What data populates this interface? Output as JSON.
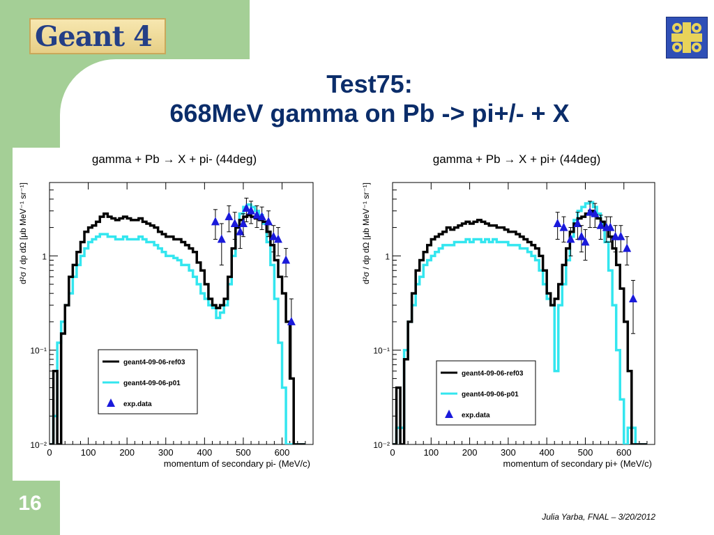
{
  "header": {
    "logo_text": "Geant 4"
  },
  "title": {
    "line1": "Test75:",
    "line2": "668MeV gamma on Pb -> pi+/- + X"
  },
  "footer": {
    "slide_number": "16",
    "credit": "Julia Yarba, FNAL – 3/20/2012"
  },
  "colors": {
    "ref03": "#000000",
    "p01": "#33e6ef",
    "exp": "#1a1adb",
    "bg_green": "#a4cf96",
    "title": "#0b2d6a"
  },
  "chart_data": [
    {
      "type": "line",
      "title": "gamma + Pb → X + pi- (44deg)",
      "xlabel": "momentum of secondary pi- (MeV/c)",
      "ylabel": "d²σ / dp dΩ [μb MeV⁻¹ sr⁻¹]",
      "xlim": [
        0,
        680
      ],
      "ylim": [
        0.01,
        6
      ],
      "yscale": "log",
      "x_ticks": [
        "0",
        "100",
        "200",
        "300",
        "400",
        "500",
        "600"
      ],
      "y_ticks": [
        "10⁻²",
        "10⁻¹",
        "1"
      ],
      "legend": [
        "geant4-09-06-ref03",
        "geant4-09-06-p01",
        "exp.data"
      ],
      "legend_position": "lower-left",
      "series": [
        {
          "name": "geant4-09-06-ref03",
          "x": [
            10,
            20,
            30,
            40,
            50,
            60,
            70,
            80,
            90,
            100,
            110,
            120,
            130,
            140,
            150,
            160,
            170,
            180,
            190,
            200,
            210,
            220,
            230,
            240,
            250,
            260,
            270,
            280,
            290,
            300,
            310,
            320,
            330,
            340,
            350,
            360,
            370,
            380,
            390,
            400,
            410,
            420,
            430,
            440,
            450,
            460,
            470,
            480,
            490,
            500,
            510,
            520,
            530,
            540,
            550,
            560,
            570,
            580,
            590,
            600,
            610,
            620,
            630,
            640,
            650,
            660
          ],
          "y": [
            0.01,
            0.06,
            0.01,
            0.15,
            0.3,
            0.6,
            0.8,
            1.1,
            1.4,
            1.8,
            2.0,
            2.1,
            2.3,
            2.6,
            2.8,
            2.6,
            2.5,
            2.4,
            2.5,
            2.6,
            2.5,
            2.4,
            2.4,
            2.5,
            2.3,
            2.2,
            2.1,
            2.0,
            1.8,
            1.7,
            1.6,
            1.6,
            1.5,
            1.5,
            1.4,
            1.3,
            1.2,
            1.1,
            0.85,
            0.7,
            0.5,
            0.35,
            0.3,
            0.28,
            0.3,
            0.35,
            0.6,
            1.2,
            2.0,
            2.4,
            2.6,
            2.7,
            2.6,
            2.5,
            2.4,
            2.3,
            1.8,
            1.3,
            0.9,
            0.6,
            0.4,
            0.2,
            0.05,
            0.01,
            0.01,
            0.01
          ]
        },
        {
          "name": "geant4-09-06-p01",
          "x": [
            10,
            20,
            30,
            40,
            50,
            60,
            70,
            80,
            90,
            100,
            110,
            120,
            130,
            140,
            150,
            160,
            170,
            180,
            190,
            200,
            210,
            220,
            230,
            240,
            250,
            260,
            270,
            280,
            290,
            300,
            310,
            320,
            330,
            340,
            350,
            360,
            370,
            380,
            390,
            400,
            410,
            420,
            430,
            440,
            450,
            460,
            470,
            480,
            490,
            500,
            510,
            520,
            530,
            540,
            550,
            560,
            570,
            580,
            590,
            600,
            610,
            620,
            630,
            640,
            650,
            660
          ],
          "y": [
            0.01,
            0.02,
            0.12,
            0.2,
            0.3,
            0.4,
            0.6,
            0.8,
            1.0,
            1.2,
            1.4,
            1.5,
            1.6,
            1.7,
            1.7,
            1.6,
            1.6,
            1.5,
            1.5,
            1.6,
            1.5,
            1.5,
            1.5,
            1.6,
            1.5,
            1.4,
            1.4,
            1.3,
            1.2,
            1.1,
            1.0,
            1.0,
            0.95,
            0.9,
            0.8,
            0.8,
            0.7,
            0.6,
            0.5,
            0.4,
            0.35,
            0.3,
            0.28,
            0.22,
            0.25,
            0.3,
            0.5,
            1.0,
            2.0,
            2.8,
            3.3,
            3.5,
            3.3,
            3.0,
            2.7,
            2.2,
            1.4,
            0.8,
            0.35,
            0.12,
            0.04,
            0.01,
            0.01,
            0.01,
            0.01,
            0.01
          ]
        },
        {
          "name": "exp.data",
          "x": [
            428,
            444,
            463,
            478,
            492,
            500,
            508,
            520,
            535,
            548,
            565,
            578,
            590,
            610,
            624
          ],
          "y": [
            2.3,
            1.5,
            2.6,
            2.2,
            1.8,
            2.2,
            3.2,
            3.0,
            2.7,
            2.6,
            2.3,
            1.6,
            1.5,
            0.9,
            0.2
          ],
          "yerr": [
            0.8,
            0.7,
            0.8,
            0.7,
            0.6,
            0.6,
            0.9,
            0.8,
            0.7,
            0.7,
            0.7,
            0.5,
            0.5,
            0.3,
            0.15
          ]
        }
      ]
    },
    {
      "type": "line",
      "title": "gamma + Pb → X + pi+ (44deg)",
      "xlabel": "momentum of secondary pi+ (MeV/c)",
      "ylabel": "d²σ / dp dΩ [μb MeV⁻¹ sr⁻¹]",
      "xlim": [
        0,
        680
      ],
      "ylim": [
        0.01,
        6
      ],
      "yscale": "log",
      "x_ticks": [
        "0",
        "100",
        "200",
        "300",
        "400",
        "500",
        "600"
      ],
      "y_ticks": [
        "10⁻²",
        "10⁻¹",
        "1"
      ],
      "legend": [
        "geant4-09-06-ref03",
        "geant4-09-06-p01",
        "exp.data"
      ],
      "legend_position": "lower-center",
      "series": [
        {
          "name": "geant4-09-06-ref03",
          "x": [
            10,
            20,
            30,
            40,
            50,
            60,
            70,
            80,
            90,
            100,
            110,
            120,
            130,
            140,
            150,
            160,
            170,
            180,
            190,
            200,
            210,
            220,
            230,
            240,
            250,
            260,
            270,
            280,
            290,
            300,
            310,
            320,
            330,
            340,
            350,
            360,
            370,
            380,
            390,
            400,
            410,
            420,
            430,
            440,
            450,
            460,
            470,
            480,
            490,
            500,
            510,
            520,
            530,
            540,
            550,
            560,
            570,
            580,
            590,
            600,
            610,
            620,
            630,
            640,
            650,
            660
          ],
          "y": [
            0.01,
            0.04,
            0.01,
            0.08,
            0.2,
            0.4,
            0.7,
            0.9,
            1.1,
            1.3,
            1.5,
            1.6,
            1.7,
            1.8,
            2.0,
            1.9,
            2.0,
            2.1,
            2.2,
            2.3,
            2.2,
            2.3,
            2.4,
            2.3,
            2.2,
            2.1,
            2.1,
            2.0,
            2.0,
            1.9,
            1.8,
            1.8,
            1.7,
            1.6,
            1.5,
            1.4,
            1.3,
            1.2,
            1.0,
            0.7,
            0.4,
            0.3,
            0.35,
            0.5,
            0.8,
            1.2,
            1.8,
            2.2,
            2.5,
            2.6,
            2.8,
            3.0,
            2.7,
            2.5,
            2.3,
            2.0,
            1.6,
            1.2,
            0.8,
            0.45,
            0.2,
            0.06,
            0.01,
            0.01,
            0.01,
            0.01
          ]
        },
        {
          "name": "geant4-09-06-p01",
          "x": [
            10,
            20,
            30,
            40,
            50,
            60,
            70,
            80,
            90,
            100,
            110,
            120,
            130,
            140,
            150,
            160,
            170,
            180,
            190,
            200,
            210,
            220,
            230,
            240,
            250,
            260,
            270,
            280,
            290,
            300,
            310,
            320,
            330,
            340,
            350,
            360,
            370,
            380,
            390,
            400,
            410,
            420,
            430,
            440,
            450,
            460,
            470,
            480,
            490,
            500,
            510,
            520,
            530,
            540,
            550,
            560,
            570,
            580,
            590,
            600,
            610,
            620,
            630,
            640,
            650,
            660
          ],
          "y": [
            0.01,
            0.015,
            0.015,
            0.1,
            0.2,
            0.3,
            0.5,
            0.6,
            0.8,
            0.9,
            1.0,
            1.1,
            1.2,
            1.3,
            1.3,
            1.3,
            1.4,
            1.4,
            1.4,
            1.5,
            1.4,
            1.5,
            1.5,
            1.4,
            1.5,
            1.4,
            1.5,
            1.4,
            1.4,
            1.4,
            1.3,
            1.3,
            1.3,
            1.2,
            1.2,
            1.1,
            1.0,
            0.9,
            0.7,
            0.5,
            0.35,
            0.3,
            0.06,
            0.3,
            0.5,
            0.9,
            1.6,
            2.4,
            3.0,
            3.3,
            3.6,
            3.7,
            3.3,
            2.8,
            2.2,
            1.4,
            0.7,
            0.3,
            0.1,
            0.03,
            0.01,
            0.015,
            0.015,
            0.01,
            0.01,
            0.01
          ]
        },
        {
          "name": "exp.data",
          "x": [
            428,
            444,
            462,
            480,
            490,
            500,
            512,
            525,
            540,
            555,
            565,
            578,
            592,
            608,
            624
          ],
          "y": [
            2.2,
            2.0,
            1.5,
            2.2,
            1.6,
            1.4,
            2.9,
            2.8,
            2.1,
            2.0,
            2.0,
            1.6,
            1.6,
            1.2,
            0.35
          ],
          "yerr": [
            0.7,
            0.6,
            0.5,
            0.7,
            0.5,
            0.5,
            0.9,
            0.8,
            0.6,
            0.6,
            0.6,
            0.5,
            0.5,
            0.4,
            0.2
          ]
        }
      ]
    }
  ]
}
